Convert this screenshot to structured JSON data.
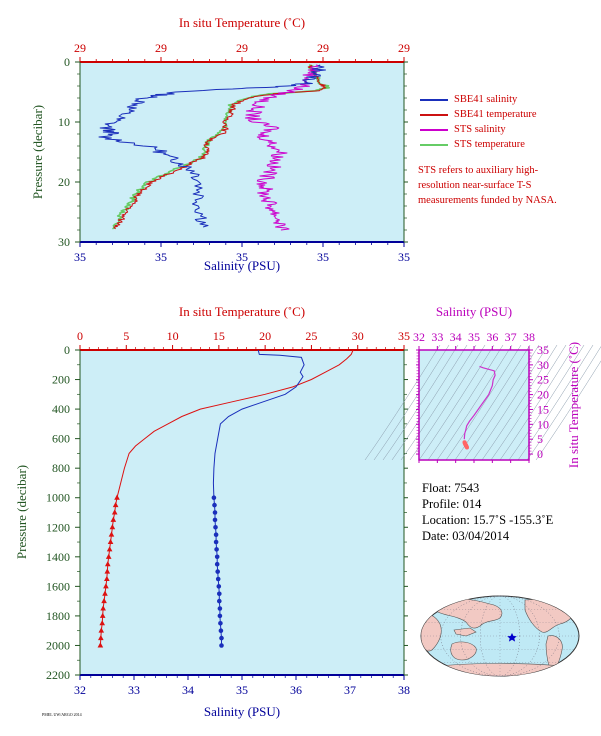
{
  "chart_data": [
    {
      "type": "line",
      "panel": "top-surface-profile",
      "top_axis_label": "In situ Temperature (˚C)",
      "top_ticks": [
        "29",
        "29",
        "29",
        "29",
        "29"
      ],
      "bottom_axis_label": "Salinity (PSU)",
      "bottom_ticks": [
        "35",
        "35",
        "35",
        "35",
        "35"
      ],
      "ylabel": "Pressure (decibar)",
      "y_ticks": [
        0,
        10,
        20,
        30
      ],
      "ylim": [
        0,
        30
      ],
      "grid": false,
      "series": [
        {
          "name": "SBE41 salinity",
          "color": "#1a2fbb",
          "points": [
            [
              0.73,
              0.5
            ],
            [
              0.74,
              1.5
            ],
            [
              0.72,
              2.5
            ],
            [
              0.7,
              3.5
            ],
            [
              0.66,
              4.0
            ],
            [
              0.45,
              4.5
            ],
            [
              0.3,
              5.0
            ],
            [
              0.25,
              5.5
            ],
            [
              0.2,
              6.0
            ],
            [
              0.18,
              7.0
            ],
            [
              0.15,
              8.0
            ],
            [
              0.13,
              9.0
            ],
            [
              0.1,
              10.0
            ],
            [
              0.08,
              11.0
            ],
            [
              0.1,
              11.8
            ],
            [
              0.07,
              12.5
            ],
            [
              0.16,
              13.5
            ],
            [
              0.24,
              14.5
            ],
            [
              0.26,
              15.5
            ],
            [
              0.3,
              16.5
            ],
            [
              0.33,
              17.5
            ],
            [
              0.36,
              18.5
            ],
            [
              0.37,
              20.0
            ],
            [
              0.37,
              22.0
            ],
            [
              0.37,
              24.0
            ],
            [
              0.38,
              26.0
            ],
            [
              0.38,
              27.5
            ]
          ]
        },
        {
          "name": "SBE41 temperature",
          "color": "#cc1111",
          "points": [
            [
              0.71,
              0.5
            ],
            [
              0.72,
              1.5
            ],
            [
              0.73,
              2.5
            ],
            [
              0.74,
              3.5
            ],
            [
              0.76,
              4.2
            ],
            [
              0.73,
              4.8
            ],
            [
              0.6,
              5.3
            ],
            [
              0.52,
              6.0
            ],
            [
              0.48,
              7.0
            ],
            [
              0.47,
              8.0
            ],
            [
              0.46,
              9.0
            ],
            [
              0.45,
              10.0
            ],
            [
              0.45,
              11.0
            ],
            [
              0.44,
              12.0
            ],
            [
              0.4,
              13.0
            ],
            [
              0.39,
              14.0
            ],
            [
              0.39,
              15.0
            ],
            [
              0.38,
              16.0
            ],
            [
              0.34,
              17.0
            ],
            [
              0.3,
              18.0
            ],
            [
              0.26,
              19.0
            ],
            [
              0.22,
              20.0
            ],
            [
              0.2,
              21.0
            ],
            [
              0.18,
              22.0
            ],
            [
              0.17,
              23.0
            ],
            [
              0.16,
              24.0
            ],
            [
              0.14,
              25.0
            ],
            [
              0.13,
              26.0
            ],
            [
              0.12,
              27.0
            ],
            [
              0.11,
              27.8
            ]
          ]
        },
        {
          "name": "STS salinity",
          "color": "#cc00cc",
          "points": [
            [
              0.73,
              0.5
            ],
            [
              0.72,
              1.5
            ],
            [
              0.71,
              2.5
            ],
            [
              0.7,
              3.5
            ],
            [
              0.68,
              4.3
            ],
            [
              0.64,
              5.0
            ],
            [
              0.58,
              6.0
            ],
            [
              0.55,
              7.0
            ],
            [
              0.54,
              8.0
            ],
            [
              0.53,
              9.0
            ],
            [
              0.54,
              10.0
            ],
            [
              0.6,
              11.0
            ],
            [
              0.56,
              12.0
            ],
            [
              0.58,
              13.0
            ],
            [
              0.6,
              14.0
            ],
            [
              0.62,
              15.0
            ],
            [
              0.61,
              16.0
            ],
            [
              0.6,
              17.0
            ],
            [
              0.59,
              18.0
            ],
            [
              0.58,
              19.0
            ],
            [
              0.57,
              20.0
            ],
            [
              0.57,
              21.0
            ],
            [
              0.57,
              22.0
            ],
            [
              0.58,
              23.0
            ],
            [
              0.59,
              24.0
            ],
            [
              0.6,
              25.0
            ],
            [
              0.61,
              26.0
            ],
            [
              0.62,
              27.0
            ],
            [
              0.62,
              28.0
            ]
          ]
        },
        {
          "name": "STS temperature",
          "color": "#66cc66",
          "points": [
            [
              0.71,
              0.5
            ],
            [
              0.72,
              1.5
            ],
            [
              0.73,
              2.5
            ],
            [
              0.74,
              3.5
            ],
            [
              0.77,
              4.2
            ],
            [
              0.72,
              4.8
            ],
            [
              0.59,
              5.3
            ],
            [
              0.51,
              6.0
            ],
            [
              0.47,
              7.0
            ],
            [
              0.46,
              8.0
            ],
            [
              0.45,
              9.0
            ],
            [
              0.45,
              10.0
            ],
            [
              0.44,
              11.0
            ],
            [
              0.43,
              12.0
            ],
            [
              0.4,
              13.0
            ],
            [
              0.39,
              14.0
            ],
            [
              0.38,
              15.0
            ],
            [
              0.37,
              16.0
            ],
            [
              0.33,
              17.0
            ],
            [
              0.29,
              18.0
            ],
            [
              0.25,
              19.0
            ],
            [
              0.21,
              20.0
            ],
            [
              0.19,
              21.0
            ],
            [
              0.17,
              22.0
            ],
            [
              0.16,
              23.0
            ],
            [
              0.15,
              24.0
            ],
            [
              0.13,
              25.0
            ],
            [
              0.12,
              26.0
            ],
            [
              0.11,
              27.0
            ],
            [
              0.1,
              27.8
            ]
          ]
        }
      ]
    },
    {
      "type": "line",
      "panel": "bottom-full-profile",
      "top_axis_label": "In situ Temperature (˚C)",
      "top_ticks": [
        0,
        5,
        10,
        15,
        20,
        25,
        30,
        35
      ],
      "xlim_temperature": [
        0,
        35
      ],
      "bottom_axis_label": "Salinity (PSU)",
      "bottom_ticks": [
        32,
        33,
        34,
        35,
        36,
        37,
        38
      ],
      "xlim_salinity": [
        32,
        38
      ],
      "ylabel": "Pressure (decibar)",
      "y_ticks": [
        0,
        200,
        400,
        600,
        800,
        1000,
        1200,
        1400,
        1600,
        1800,
        2000,
        2200
      ],
      "ylim": [
        0,
        2200
      ],
      "grid": false,
      "salinity": {
        "color": "#1a2fbb",
        "line": [
          [
            35.3,
            0
          ],
          [
            35.32,
            30
          ],
          [
            35.7,
            35
          ],
          [
            36.1,
            50
          ],
          [
            36.15,
            100
          ],
          [
            36.08,
            150
          ],
          [
            36.13,
            180
          ],
          [
            36.0,
            250
          ],
          [
            35.8,
            300
          ],
          [
            35.4,
            350
          ],
          [
            35.0,
            400
          ],
          [
            34.75,
            450
          ],
          [
            34.6,
            500
          ],
          [
            34.55,
            600
          ],
          [
            34.5,
            700
          ],
          [
            34.48,
            800
          ],
          [
            34.47,
            900
          ],
          [
            34.48,
            1000
          ]
        ],
        "markers": [
          [
            34.48,
            1000
          ],
          [
            34.49,
            1050
          ],
          [
            34.5,
            1100
          ],
          [
            34.5,
            1150
          ],
          [
            34.51,
            1200
          ],
          [
            34.52,
            1250
          ],
          [
            34.52,
            1300
          ],
          [
            34.53,
            1350
          ],
          [
            34.54,
            1400
          ],
          [
            34.54,
            1450
          ],
          [
            34.55,
            1500
          ],
          [
            34.56,
            1550
          ],
          [
            34.57,
            1600
          ],
          [
            34.58,
            1650
          ],
          [
            34.58,
            1700
          ],
          [
            34.59,
            1750
          ],
          [
            34.59,
            1800
          ],
          [
            34.6,
            1850
          ],
          [
            34.61,
            1900
          ],
          [
            34.62,
            1950
          ],
          [
            34.62,
            2000
          ]
        ]
      },
      "temperature": {
        "color": "#dd1111",
        "line": [
          [
            29.5,
            0
          ],
          [
            29.3,
            30
          ],
          [
            28.8,
            60
          ],
          [
            28.0,
            100
          ],
          [
            26.5,
            150
          ],
          [
            25.0,
            200
          ],
          [
            23.0,
            250
          ],
          [
            20.0,
            300
          ],
          [
            16.5,
            350
          ],
          [
            13.0,
            400
          ],
          [
            11.0,
            450
          ],
          [
            9.5,
            500
          ],
          [
            8.0,
            550
          ],
          [
            7.0,
            600
          ],
          [
            6.0,
            650
          ],
          [
            5.3,
            700
          ],
          [
            4.8,
            800
          ],
          [
            4.4,
            900
          ],
          [
            4.0,
            1000
          ]
        ],
        "markers": [
          [
            4.0,
            1000
          ],
          [
            3.85,
            1050
          ],
          [
            3.75,
            1100
          ],
          [
            3.6,
            1150
          ],
          [
            3.5,
            1200
          ],
          [
            3.4,
            1250
          ],
          [
            3.3,
            1300
          ],
          [
            3.2,
            1350
          ],
          [
            3.1,
            1400
          ],
          [
            3.0,
            1450
          ],
          [
            2.95,
            1500
          ],
          [
            2.9,
            1550
          ],
          [
            2.8,
            1600
          ],
          [
            2.7,
            1650
          ],
          [
            2.6,
            1700
          ],
          [
            2.5,
            1750
          ],
          [
            2.45,
            1800
          ],
          [
            2.4,
            1850
          ],
          [
            2.3,
            1900
          ],
          [
            2.25,
            1950
          ],
          [
            2.2,
            2000
          ]
        ]
      }
    },
    {
      "type": "scatter",
      "panel": "ts-diagram",
      "top_axis_label": "Salinity (PSU)",
      "x_ticks": [
        32,
        33,
        34,
        35,
        36,
        37,
        38
      ],
      "xlim": [
        32,
        38
      ],
      "right_axis_label": "In situ Temperature (˚C)",
      "y_ticks": [
        0,
        5,
        10,
        15,
        20,
        25,
        30,
        35
      ],
      "ylim": [
        -2,
        35
      ],
      "grid": false,
      "series": [
        {
          "color": "#cc33cc",
          "points": [
            [
              35.3,
              29.5
            ],
            [
              35.5,
              29.0
            ],
            [
              36.1,
              28.0
            ],
            [
              36.15,
              26.5
            ],
            [
              36.05,
              25.0
            ],
            [
              36.0,
              23.0
            ],
            [
              35.8,
              20.0
            ],
            [
              35.4,
              16.5
            ],
            [
              35.0,
              13.0
            ],
            [
              34.75,
              11.0
            ],
            [
              34.6,
              9.5
            ],
            [
              34.55,
              8.0
            ],
            [
              34.5,
              7.0
            ],
            [
              34.48,
              6.0
            ],
            [
              34.47,
              5.0
            ]
          ]
        },
        {
          "color": "#ff6666",
          "points": [
            [
              34.48,
              4.0
            ],
            [
              34.49,
              3.85
            ],
            [
              34.5,
              3.7
            ],
            [
              34.51,
              3.5
            ],
            [
              34.52,
              3.4
            ],
            [
              34.53,
              3.2
            ],
            [
              34.54,
              3.1
            ],
            [
              34.55,
              3.0
            ],
            [
              34.57,
              2.9
            ],
            [
              34.58,
              2.7
            ],
            [
              34.59,
              2.5
            ],
            [
              34.6,
              2.4
            ],
            [
              34.62,
              2.2
            ]
          ]
        }
      ]
    }
  ],
  "legend": [
    {
      "label": "SBE41 salinity",
      "color": "#1a2fbb"
    },
    {
      "label": "SBE41 temperature",
      "color": "#cc1111"
    },
    {
      "label": "STS salinity",
      "color": "#cc00cc"
    },
    {
      "label": "STS temperature",
      "color": "#66cc66"
    }
  ],
  "note": "STS refers to auxiliary high-resolution near-surface T-S measurements funded by NASA.",
  "info": {
    "float": "Float:  7543",
    "profile": "Profile:  014",
    "location": "Location:  15.7˚S  -155.3˚E",
    "date": "Date:  03/04/2014"
  },
  "map": {
    "float_marker_lon": -155.3,
    "float_marker_lat": -15.7,
    "marker_color": "#0000cc"
  },
  "footer": "PMEL UW/ARGO 2014"
}
